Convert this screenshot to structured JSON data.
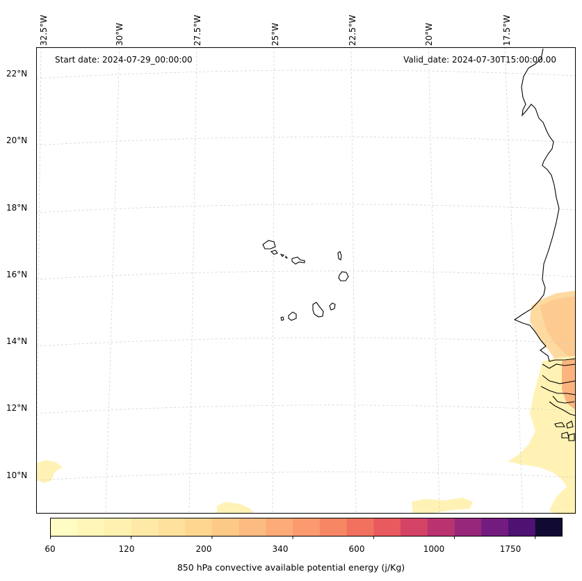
{
  "header": {
    "start_date": "Start date: 2024-07-29_00:00:00",
    "valid_date": "Valid_date: 2024-07-30T15:00:00.00"
  },
  "map": {
    "lon_labels": [
      "32.5°W",
      "30°W",
      "27.5°W",
      "25°W",
      "22.5°W",
      "20°W",
      "17.5°W"
    ],
    "lat_labels": [
      "22°N",
      "20°N",
      "18°N",
      "16°N",
      "14°N",
      "12°N",
      "10°N"
    ],
    "gridlines": true,
    "colors": {
      "coastline": "#000000",
      "gridline": "#cccccc",
      "cape_low": "#fff7b8",
      "cape_mid": "#fdc68c",
      "cape_high": "#f89e6c"
    }
  },
  "colorbar": {
    "ticks": [
      "60",
      "120",
      "200",
      "340",
      "600",
      "1000",
      "1750"
    ],
    "label": "850 hPa convective available potential energy (j/Kg)",
    "colors": [
      "#fffdc4",
      "#fff6b8",
      "#fff1b0",
      "#feeaa6",
      "#fee19c",
      "#fed690",
      "#fdc987",
      "#fcbb81",
      "#fcab79",
      "#fb9a6f",
      "#f78764",
      "#f1715e",
      "#e85a5e",
      "#d44265",
      "#b9346f",
      "#97277a",
      "#721c80",
      "#4d1272",
      "#110b34"
    ]
  }
}
